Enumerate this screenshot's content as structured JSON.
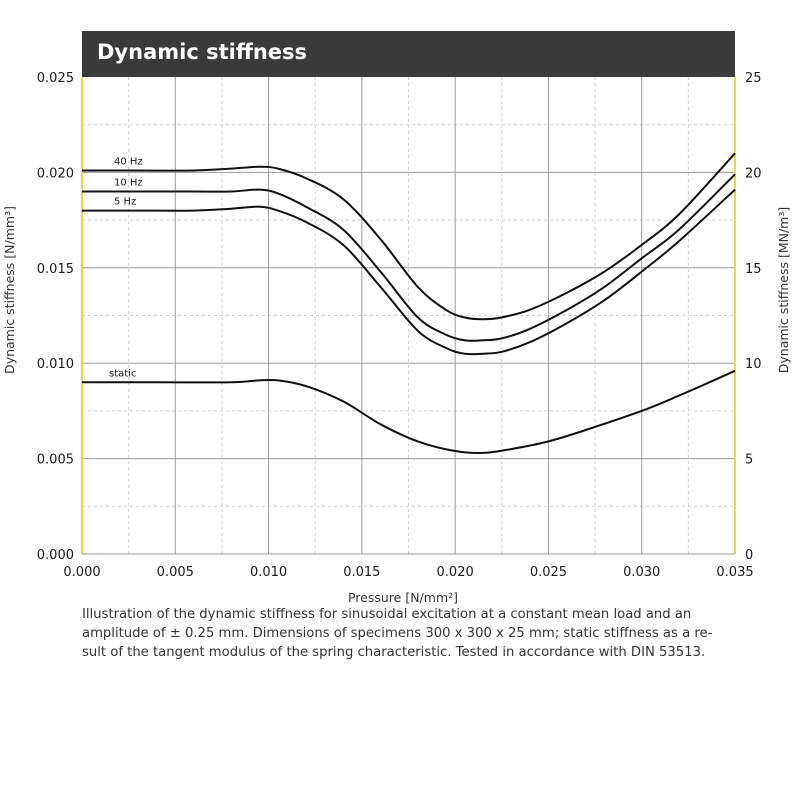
{
  "chart_data": {
    "type": "line",
    "title": "Dynamic stiffness",
    "xlabel": "Pressure [N/mm²]",
    "ylabel": "Dynamic stiffness  [N/mm³]",
    "ylabel_right": "Dynamic stiffness  [MN/m³]",
    "xlim": [
      0,
      0.035
    ],
    "ylim": [
      0,
      0.025
    ],
    "ylim_right": [
      0,
      25
    ],
    "x_ticks": [
      "0.000",
      "0.005",
      "0.010",
      "0.015",
      "0.020",
      "0.025",
      "0.030",
      "0.035"
    ],
    "y_ticks": [
      "0.000",
      "0.005",
      "0.010",
      "0.015",
      "0.020",
      "0.025"
    ],
    "y_ticks_right": [
      "0",
      "5",
      "10",
      "15",
      "20",
      "25"
    ],
    "grid": true,
    "series": [
      {
        "name": "40 Hz",
        "x": [
          0,
          0.003,
          0.006,
          0.008,
          0.0095,
          0.0105,
          0.012,
          0.014,
          0.016,
          0.018,
          0.0195,
          0.0205,
          0.0215,
          0.0225,
          0.024,
          0.026,
          0.028,
          0.03,
          0.032,
          0.035
        ],
        "y": [
          0.0201,
          0.0201,
          0.0201,
          0.0202,
          0.0203,
          0.0202,
          0.0197,
          0.0186,
          0.0165,
          0.014,
          0.0128,
          0.0124,
          0.0123,
          0.0124,
          0.0128,
          0.0137,
          0.0148,
          0.0162,
          0.0178,
          0.021
        ]
      },
      {
        "name": "10 Hz",
        "x": [
          0,
          0.003,
          0.006,
          0.008,
          0.0095,
          0.0105,
          0.012,
          0.014,
          0.016,
          0.018,
          0.0195,
          0.0205,
          0.0215,
          0.0225,
          0.024,
          0.026,
          0.028,
          0.03,
          0.032,
          0.035
        ],
        "y": [
          0.019,
          0.019,
          0.019,
          0.019,
          0.0191,
          0.0189,
          0.0182,
          0.017,
          0.0148,
          0.0124,
          0.0115,
          0.0112,
          0.0112,
          0.0113,
          0.0118,
          0.0128,
          0.014,
          0.0155,
          0.017,
          0.0199
        ]
      },
      {
        "name": "5 Hz",
        "x": [
          0,
          0.003,
          0.006,
          0.008,
          0.0095,
          0.0105,
          0.012,
          0.014,
          0.016,
          0.018,
          0.0195,
          0.0205,
          0.0215,
          0.0225,
          0.024,
          0.026,
          0.028,
          0.03,
          0.032,
          0.035
        ],
        "y": [
          0.018,
          0.018,
          0.018,
          0.0181,
          0.0182,
          0.018,
          0.0174,
          0.0162,
          0.014,
          0.0117,
          0.0108,
          0.0105,
          0.0105,
          0.0106,
          0.0111,
          0.0121,
          0.0133,
          0.0148,
          0.0164,
          0.0191
        ]
      },
      {
        "name": "static",
        "x": [
          0,
          0.004,
          0.008,
          0.0095,
          0.0105,
          0.012,
          0.014,
          0.016,
          0.018,
          0.02,
          0.0215,
          0.023,
          0.025,
          0.027,
          0.03,
          0.032,
          0.035
        ],
        "y": [
          0.009,
          0.009,
          0.009,
          0.0091,
          0.0091,
          0.0088,
          0.008,
          0.0068,
          0.0059,
          0.0054,
          0.0053,
          0.0055,
          0.0059,
          0.0065,
          0.0075,
          0.0083,
          0.0096
        ]
      }
    ]
  },
  "caption": "Illustration of the dynamic stiffness for sinusoidal excitation at a constant mean load and an amplitude of ± 0.25 mm.  Dimensions of specimens 300 x 300 x 25 mm; static stiffness as a re-sult of the tangent modulus of the  spring characteristic. Tested in accordance with DIN 53513.",
  "colors": {
    "title_bg": "#3a3a3a",
    "axis_frame": "#f5d33b",
    "grid": "#9a9a9a",
    "minor_grid": "#cfcfcf",
    "line": "#111111"
  }
}
